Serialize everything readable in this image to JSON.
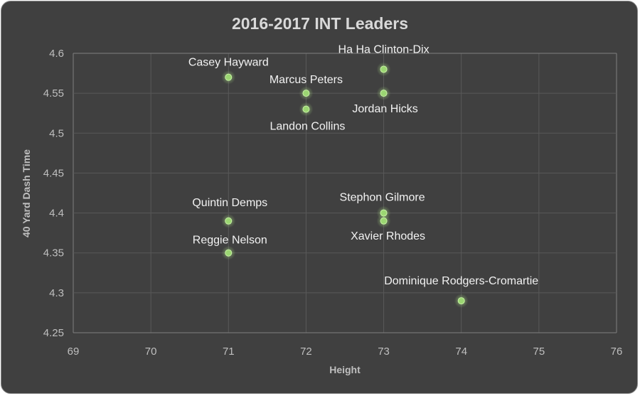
{
  "chart_data": {
    "type": "scatter",
    "title": "2016-2017 INT Leaders",
    "xlabel": "Height",
    "ylabel": "40 Yard Dash Time",
    "xlim": [
      69,
      76
    ],
    "ylim": [
      4.25,
      4.6
    ],
    "xticks": [
      "69",
      "70",
      "71",
      "72",
      "73",
      "74",
      "75",
      "76"
    ],
    "yticks": [
      "4.25",
      "4.3",
      "4.35",
      "4.4",
      "4.45",
      "4.5",
      "4.55",
      "4.6"
    ],
    "grid": true,
    "marker_color": "#9bd672",
    "points": [
      {
        "label": "Casey Hayward",
        "x": 71,
        "y": 4.57
      },
      {
        "label": "Ha Ha Clinton-Dix",
        "x": 73,
        "y": 4.58
      },
      {
        "label": "Marcus Peters",
        "x": 72,
        "y": 4.55
      },
      {
        "label": "Jordan Hicks",
        "x": 73,
        "y": 4.55
      },
      {
        "label": "Landon Collins",
        "x": 72,
        "y": 4.53
      },
      {
        "label": "Quintin Demps",
        "x": 71,
        "y": 4.39
      },
      {
        "label": "Stephon Gilmore",
        "x": 73,
        "y": 4.4
      },
      {
        "label": "Xavier Rhodes",
        "x": 73,
        "y": 4.39
      },
      {
        "label": "Reggie Nelson",
        "x": 71,
        "y": 4.35
      },
      {
        "label": "Dominique Rodgers-Cromartie",
        "x": 74,
        "y": 4.29
      }
    ]
  }
}
